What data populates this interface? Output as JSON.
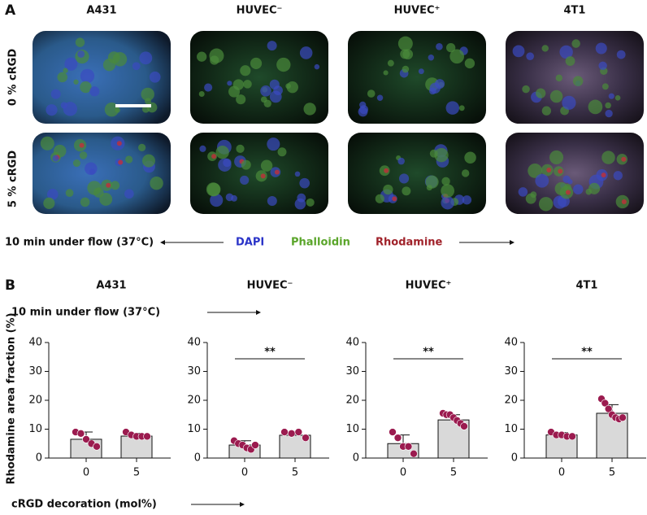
{
  "panel_a": {
    "label": "A",
    "columns": [
      "A431",
      "HUVEC⁻",
      "HUVEC⁺",
      "4T1"
    ],
    "rows": [
      "0 % cRGD",
      "5 % cRGD"
    ],
    "caption": "10 min under flow (37°C)",
    "legend": [
      {
        "name": "DAPI",
        "color": "#2b34c8"
      },
      {
        "name": "Phalloidin",
        "color": "#5aa52a"
      },
      {
        "name": "Rhodamine",
        "color": "#a0222a"
      }
    ]
  },
  "panel_b": {
    "label": "B",
    "caption": "10 min under flow (37°C)",
    "y_label": "Rhodamine area fraction (%)",
    "x_label": "cRGD decoration (mol%)"
  },
  "chart_data": [
    {
      "type": "bar",
      "title": "A431",
      "categories": [
        "0",
        "5"
      ],
      "values": [
        6.5,
        7.6
      ],
      "errors": [
        2.5,
        1
      ],
      "points": [
        [
          9,
          8.5,
          6.5,
          5,
          4
        ],
        [
          9,
          8,
          7.5,
          7.5,
          7.5
        ]
      ],
      "color": "#d9d9d9",
      "point_color": "#9b1b4f",
      "ylim": [
        0,
        40
      ],
      "yticks": [
        0,
        10,
        20,
        30,
        40
      ],
      "grid": false
    },
    {
      "type": "bar",
      "title": "HUVEC⁻",
      "categories": [
        "0",
        "5"
      ],
      "values": [
        4.5,
        7.9
      ],
      "errors": [
        1.5,
        1.3
      ],
      "points": [
        [
          6,
          5,
          4.5,
          3.5,
          3,
          4.5
        ],
        [
          9,
          8.5,
          9,
          7
        ]
      ],
      "significance": "**",
      "color": "#d9d9d9",
      "point_color": "#9b1b4f",
      "ylim": [
        0,
        40
      ],
      "yticks": [
        0,
        10,
        20,
        30,
        40
      ],
      "grid": false
    },
    {
      "type": "bar",
      "title": "HUVEC⁺",
      "categories": [
        "0",
        "5"
      ],
      "values": [
        5,
        13.2
      ],
      "errors": [
        3,
        1.8
      ],
      "points": [
        [
          9,
          7,
          4,
          4,
          1.5
        ],
        [
          15.5,
          15,
          15,
          14,
          13,
          12,
          11
        ]
      ],
      "significance": "**",
      "color": "#d9d9d9",
      "point_color": "#9b1b4f",
      "ylim": [
        0,
        40
      ],
      "yticks": [
        0,
        10,
        20,
        30,
        40
      ],
      "grid": false
    },
    {
      "type": "bar",
      "title": "4T1",
      "categories": [
        "0",
        "5"
      ],
      "values": [
        8,
        15.5
      ],
      "errors": [
        0.8,
        3
      ],
      "points": [
        [
          9,
          8,
          8,
          7.5,
          7.5
        ],
        [
          20.5,
          19,
          17,
          15,
          14,
          13.5,
          14
        ]
      ],
      "significance": "**",
      "color": "#d9d9d9",
      "point_color": "#9b1b4f",
      "ylim": [
        0,
        40
      ],
      "yticks": [
        0,
        10,
        20,
        30,
        40
      ],
      "grid": false
    }
  ]
}
